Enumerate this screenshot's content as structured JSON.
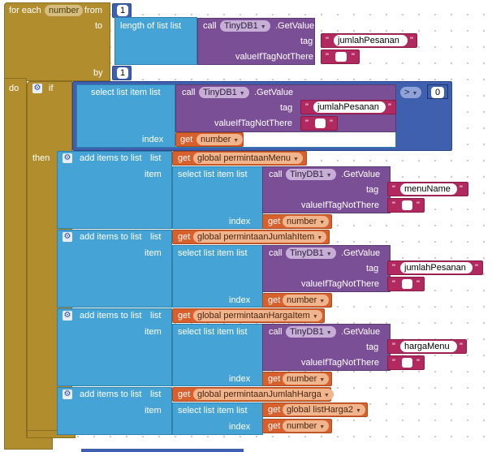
{
  "for_each": {
    "label": "for each",
    "var_name": "number",
    "from_label": "from",
    "from_value": "1",
    "to_label": "to",
    "by_label": "by",
    "by_value": "1",
    "do_label": "do",
    "length_label": "length of list  list",
    "call_label": "call",
    "component": "TinyDB1",
    "method": ".GetValue",
    "tag_label": "tag",
    "tag_value": "jumlahPesanan",
    "default_label": "valueIfTagNotThere",
    "default_value": " "
  },
  "if_block": {
    "if_label": "if",
    "then_label": "then",
    "select_label": "select list item  list",
    "call_label": "call",
    "component": "TinyDB1",
    "method": ".GetValue",
    "tag_label": "tag",
    "tag_value": "jumlahPesanan",
    "default_label": "valueIfTagNotThere",
    "default_value": " ",
    "index_label": "index",
    "get_label": "get",
    "get_var": "number",
    "compare_op": ">",
    "compare_value": "0"
  },
  "add_items": [
    {
      "add_label": "add items to list",
      "list_label": "list",
      "get_label": "get",
      "list_var": "global permintaanMenu",
      "item_label": "item",
      "select_label": "select list item  list",
      "call_label": "call",
      "component": "TinyDB1",
      "method": ".GetValue",
      "tag_label": "tag",
      "tag_value": "menuName",
      "default_label": "valueIfTagNotThere",
      "default_value": " ",
      "index_label": "index",
      "index_get": "get",
      "index_var": "number"
    },
    {
      "add_label": "add items to list",
      "list_label": "list",
      "get_label": "get",
      "list_var": "global permintaanJumlahItem",
      "item_label": "item",
      "select_label": "select list item  list",
      "call_label": "call",
      "component": "TinyDB1",
      "method": ".GetValue",
      "tag_label": "tag",
      "tag_value": "jumlahPesanan",
      "default_label": "valueIfTagNotThere",
      "default_value": " ",
      "index_label": "index",
      "index_get": "get",
      "index_var": "number"
    },
    {
      "add_label": "add items to list",
      "list_label": "list",
      "get_label": "get",
      "list_var": "global permintaanHargaItem",
      "item_label": "item",
      "select_label": "select list item  list",
      "call_label": "call",
      "component": "TinyDB1",
      "method": ".GetValue",
      "tag_label": "tag",
      "tag_value": "hargaMenu",
      "default_label": "valueIfTagNotThere",
      "default_value": " ",
      "index_label": "index",
      "index_get": "get",
      "index_var": "number"
    },
    {
      "add_label": "add items to list",
      "list_label": "list",
      "get_label": "get",
      "list_var": "global permintaanJumlahHarga",
      "item_label": "item",
      "select_label": "select list item  list",
      "list_get": "get",
      "list2_var": "global listHarga2",
      "index_label": "index",
      "index_get": "get",
      "index_var": "number"
    }
  ],
  "icons": {
    "gear": "gear-icon",
    "dropdown": "dropdown-arrow-icon"
  },
  "colors": {
    "control": "#b28d2e",
    "math": "#3f60ae",
    "lists": "#46a3d6",
    "procedure": "#7b4f96",
    "text": "#b1295f",
    "variable": "#d8602c"
  }
}
